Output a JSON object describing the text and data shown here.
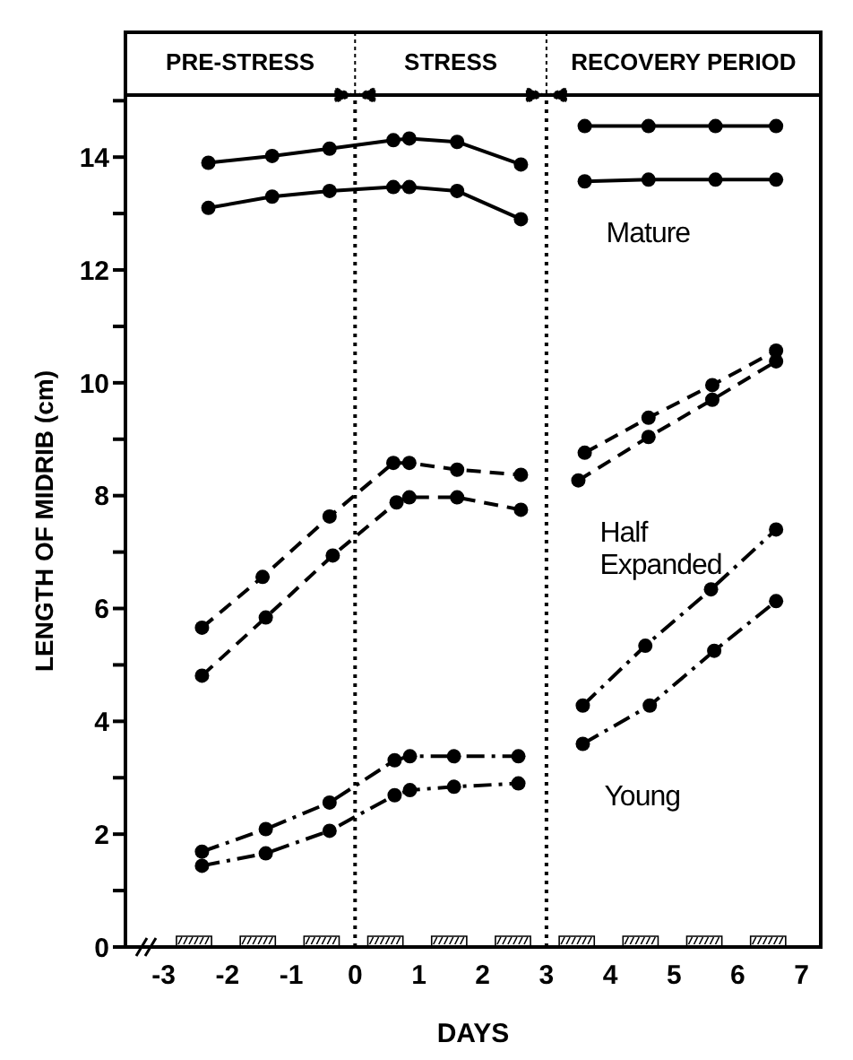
{
  "chart_data": {
    "type": "line",
    "xlabel": "DAYS",
    "ylabel": "LENGTH OF MIDRIB (cm)",
    "series": [
      {
        "color": "#000000",
        "line_style": "solid",
        "x": [
          -2.3,
          -1.3,
          -0.4,
          0.6,
          0.85,
          1.6,
          2.6,
          3,
          3.6,
          4.6,
          5.65,
          6.6
        ],
        "values": [
          13.9,
          14.02,
          14.15,
          14.3,
          14.33,
          14.27,
          13.87,
          null,
          14.55,
          14.55,
          14.55,
          14.55
        ]
      },
      {
        "color": "#000000",
        "line_style": "solid",
        "x": [
          -2.3,
          -1.3,
          -0.4,
          0.6,
          0.85,
          1.6,
          2.6,
          3,
          3.6,
          4.6,
          5.65,
          6.6
        ],
        "values": [
          13.1,
          13.3,
          13.4,
          13.47,
          13.47,
          13.4,
          12.9,
          null,
          13.57,
          13.6,
          13.6,
          13.6
        ]
      },
      {
        "color": "#000000",
        "line_style": "dashed",
        "x": [
          -2.4,
          -1.45,
          -0.4,
          0.6,
          0.85,
          1.6,
          2.6,
          3,
          3.6,
          4.6,
          5.6,
          6.6
        ],
        "values": [
          5.66,
          6.56,
          7.63,
          8.58,
          8.58,
          8.46,
          8.37,
          null,
          8.76,
          9.38,
          9.96,
          10.57
        ]
      },
      {
        "color": "#000000",
        "line_style": "dashed",
        "x": [
          -2.4,
          -1.4,
          -0.35,
          0.65,
          0.85,
          1.6,
          2.6,
          3,
          3.5,
          4.6,
          5.6,
          6.6
        ],
        "values": [
          4.81,
          5.84,
          6.94,
          7.88,
          7.97,
          7.97,
          7.75,
          null,
          8.27,
          9.04,
          9.7,
          10.38
        ]
      },
      {
        "color": "#000000",
        "line_style": "dashdot",
        "x": [
          -2.4,
          -1.4,
          -0.4,
          0.62,
          0.86,
          1.55,
          2.56,
          3,
          3.57,
          4.55,
          5.58,
          6.6
        ],
        "values": [
          1.69,
          2.09,
          2.56,
          3.31,
          3.38,
          3.38,
          3.38,
          null,
          4.28,
          5.34,
          6.34,
          7.4
        ]
      },
      {
        "color": "#000000",
        "line_style": "dashdot",
        "x": [
          -2.4,
          -1.4,
          -0.4,
          0.62,
          0.86,
          1.55,
          2.56,
          3,
          3.57,
          4.62,
          5.63,
          6.6
        ],
        "values": [
          1.44,
          1.66,
          2.06,
          2.69,
          2.78,
          2.84,
          2.9,
          null,
          3.6,
          4.28,
          5.25,
          6.13
        ]
      }
    ],
    "marker": "circle",
    "xlim": [
      -3.6,
      7.3
    ],
    "xticks": [
      -3,
      -2,
      -1,
      0,
      1,
      2,
      3,
      4,
      5,
      6,
      7
    ],
    "ylim": [
      0,
      15.1
    ],
    "yticks": [
      0,
      {
        "value": 1,
        "label": null
      },
      2,
      {
        "value": 3,
        "label": null
      },
      4,
      {
        "value": 5,
        "label": null
      },
      6,
      {
        "value": 7,
        "label": null
      },
      8,
      {
        "value": 9,
        "label": null
      },
      10,
      {
        "value": 11,
        "label": null
      },
      12,
      {
        "value": 13,
        "label": null
      },
      14,
      {
        "value": 15,
        "label": null
      }
    ],
    "ref_lines": [
      {
        "axis": "x",
        "value": 0,
        "line_style": "dotted",
        "color": "#000000"
      },
      {
        "axis": "x",
        "value": 3,
        "line_style": "dotted",
        "color": "#000000"
      }
    ],
    "annotations": [
      "PRE-STRESS",
      "STRESS",
      "RECOVERY PERIOD",
      "Mature",
      "Half\nExpanded",
      "Young"
    ]
  }
}
